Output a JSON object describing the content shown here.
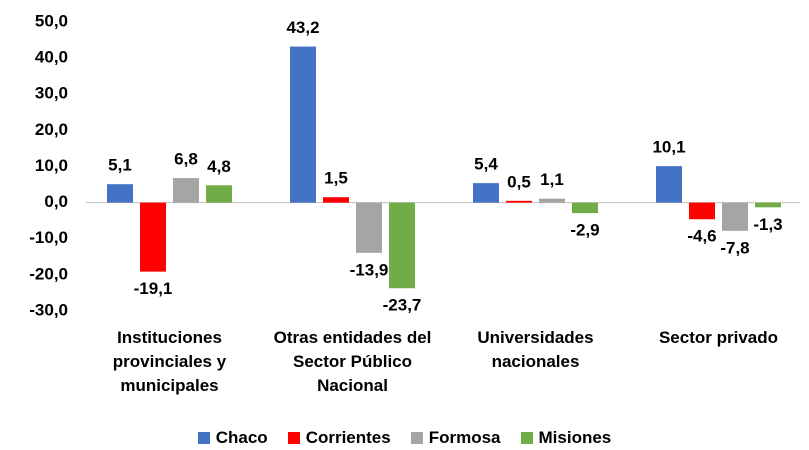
{
  "chart_data": {
    "type": "bar",
    "categories": [
      "Instituciones provinciales y municipales",
      "Otras entidades del Sector Público Nacional",
      "Universidades nacionales",
      "Sector privado"
    ],
    "series": [
      {
        "name": "Chaco",
        "color": "#4472c4",
        "values": [
          5.1,
          43.2,
          5.4,
          10.1
        ],
        "value_labels": [
          "5,1",
          "43,2",
          "5,4",
          "10,1"
        ]
      },
      {
        "name": "Corrientes",
        "color": "#ff0000",
        "values": [
          -19.1,
          1.5,
          0.5,
          -4.6
        ],
        "value_labels": [
          "-19,1",
          "1,5",
          "0,5",
          "-4,6"
        ]
      },
      {
        "name": "Formosa",
        "color": "#a5a5a5",
        "values": [
          6.8,
          -13.9,
          1.1,
          -7.8
        ],
        "value_labels": [
          "6,8",
          "-13,9",
          "1,1",
          "-7,8"
        ]
      },
      {
        "name": "Misiones",
        "color": "#70ad47",
        "values": [
          4.8,
          -23.7,
          -2.9,
          -1.3
        ],
        "value_labels": [
          "4,8",
          "-23,7",
          "-2,9",
          "-1,3"
        ]
      }
    ],
    "ylim": [
      -30,
      50
    ],
    "yticks": [
      {
        "value": -30,
        "label": "-30,0"
      },
      {
        "value": -20,
        "label": "-20,0"
      },
      {
        "value": -10,
        "label": "-10,0"
      },
      {
        "value": 0,
        "label": "0,0"
      },
      {
        "value": 10,
        "label": "10,0"
      },
      {
        "value": 20,
        "label": "20,0"
      },
      {
        "value": 30,
        "label": "30,0"
      },
      {
        "value": 40,
        "label": "40,0"
      },
      {
        "value": 50,
        "label": "50,0"
      }
    ],
    "legend": "bottom",
    "grid": false
  }
}
